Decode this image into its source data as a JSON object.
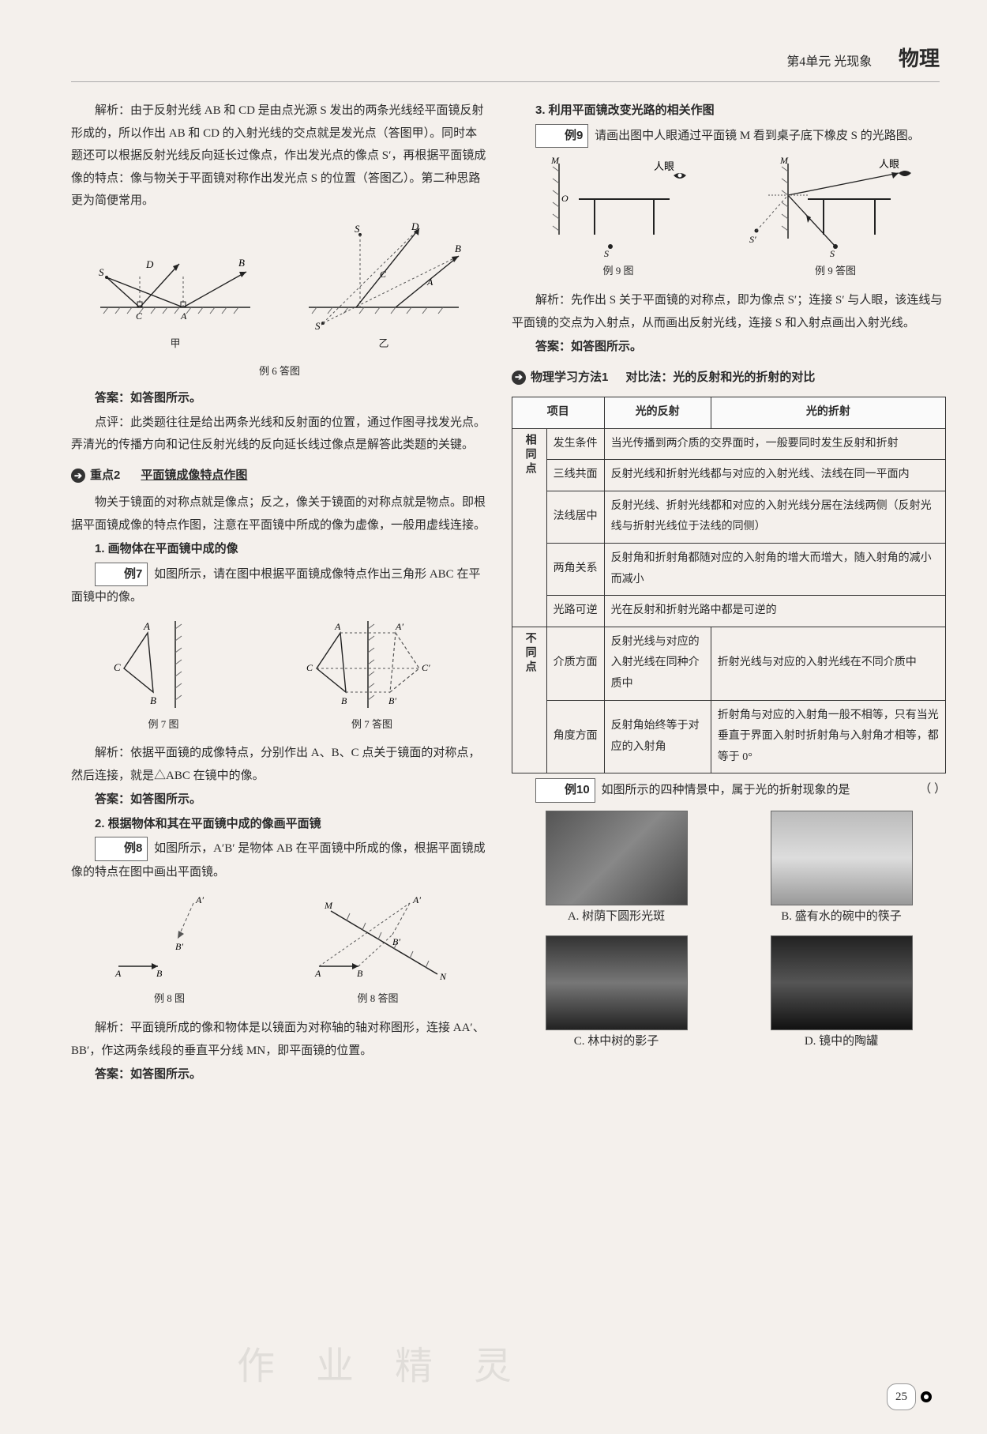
{
  "header": {
    "unit": "第4单元  光现象",
    "subject": "物理"
  },
  "page_number": "25",
  "watermark": "作 业 精 灵",
  "left": {
    "p1": "解析：由于反射光线 AB 和 CD 是由点光源 S 发出的两条光线经平面镜反射形成的，所以作出 AB 和 CD 的入射光线的交点就是发光点（答图甲）。同时本题还可以根据反射光线反向延长过像点，作出发光点的像点 S′，再根据平面镜成像的特点：像与物关于平面镜对称作出发光点 S 的位置（答图乙）。第二种思路更为简便常用。",
    "fig6_a": "甲",
    "fig6_b": "乙",
    "fig6_cap": "例 6 答图",
    "ans1": "答案：如答图所示。",
    "dp1": "点评：此类题往往是给出两条光线和反射面的位置，通过作图寻找发光点。弄清光的传播方向和记住反射光线的反向延长线过像点是解答此类题的关键。",
    "head2_tag": "重点2",
    "head2_txt": "平面镜成像特点作图",
    "p2": "物关于镜面的对称点就是像点；反之，像关于镜面的对称点就是物点。即根据平面镜成像的特点作图，注意在平面镜中所成的像为虚像，一般用虚线连接。",
    "sub1": "1. 画物体在平面镜中成的像",
    "ex7_tag": "例7",
    "ex7_txt": "如图所示，请在图中根据平面镜成像特点作出三角形 ABC 在平面镜中的像。",
    "fig7_a_cap": "例 7 图",
    "fig7_b_cap": "例 7 答图",
    "ex7_expl": "解析：依据平面镜的成像特点，分别作出 A、B、C 点关于镜面的对称点，然后连接，就是△ABC 在镜中的像。",
    "ans7": "答案：如答图所示。",
    "sub2": "2. 根据物体和其在平面镜中成的像画平面镜",
    "ex8_tag": "例8",
    "ex8_txt": "如图所示，A′B′ 是物体 AB 在平面镜中所成的像，根据平面镜成像的特点在图中画出平面镜。",
    "fig8_a_cap": "例 8 图",
    "fig8_b_cap": "例 8 答图",
    "ex8_expl": "解析：平面镜所成的像和物体是以镜面为对称轴的轴对称图形，连接 AA′、BB′，作这两条线段的垂直平分线 MN，即平面镜的位置。",
    "ans8": "答案：如答图所示。"
  },
  "right": {
    "sub3": "3. 利用平面镜改变光路的相关作图",
    "ex9_tag": "例9",
    "ex9_txt": "请画出图中人眼通过平面镜 M 看到桌子底下橡皮 S 的光路图。",
    "fig9_a_cap": "例 9 图",
    "fig9_b_cap": "例 9 答图",
    "eye_label": "人眼",
    "ex9_expl": "解析：先作出 S 关于平面镜的对称点，即为像点 S′；连接 S′ 与人眼，该连线与平面镜的交点为入射点，从而画出反射光线，连接 S 和入射点画出入射光线。",
    "ans9": "答案：如答图所示。",
    "method_tag": "物理学习方法1",
    "method_title": "对比法：光的反射和光的折射的对比",
    "table": {
      "header": [
        "项目",
        "光的反射",
        "光的折射"
      ],
      "same_label": "相同点",
      "diff_label": "不同点",
      "rows_same": [
        [
          "发生条件",
          "当光传播到两介质的交界面时，一般要同时发生反射和折射"
        ],
        [
          "三线共面",
          "反射光线和折射光线都与对应的入射光线、法线在同一平面内"
        ],
        [
          "法线居中",
          "反射光线、折射光线都和对应的入射光线分居在法线两侧（反射光线与折射光线位于法线的同侧）"
        ],
        [
          "两角关系",
          "反射角和折射角都随对应的入射角的增大而增大，随入射角的减小而减小"
        ],
        [
          "光路可逆",
          "光在反射和折射光路中都是可逆的"
        ]
      ],
      "rows_diff": [
        [
          "介质方面",
          "反射光线与对应的入射光线在同种介质中",
          "折射光线与对应的入射光线在不同介质中"
        ],
        [
          "角度方面",
          "反射角始终等于对应的入射角",
          "折射角与对应的入射角一般不相等，只有当光垂直于界面入射时折射角与入射角才相等，都等于 0°"
        ]
      ]
    },
    "ex10_tag": "例10",
    "ex10_txt": "如图所示的四种情景中，属于光的折射现象的是",
    "blank": "（        ）",
    "opts": {
      "a": "A. 树荫下圆形光斑",
      "b": "B. 盛有水的碗中的筷子",
      "c": "C. 林中树的影子",
      "d": "D. 镜中的陶罐"
    }
  },
  "svg_colors": {
    "stroke": "#222",
    "dash": "#555",
    "hatch": "#666"
  }
}
